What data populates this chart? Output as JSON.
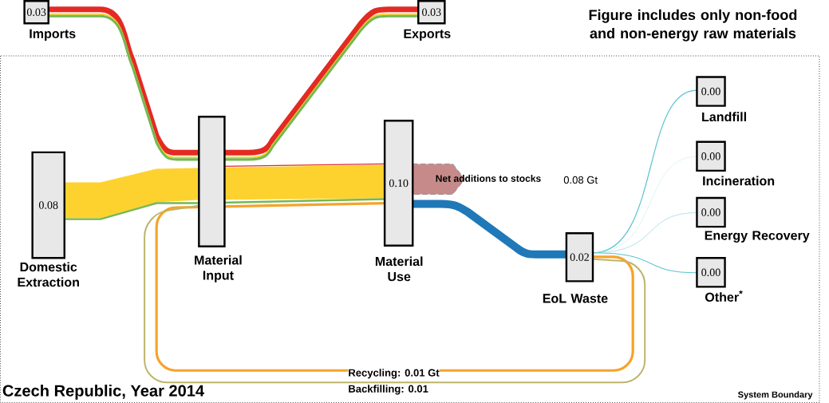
{
  "chart_data": {
    "type": "other",
    "title": "Czech Republic, Year 2014",
    "categories": [
      "Imports",
      "Exports",
      "Domestic Extraction",
      "Material Input",
      "Material Use",
      "EoL Waste",
      "Landfill",
      "Incineration",
      "Energy Recovery",
      "Other$^{*}$"
    ],
    "values": [
      0.03,
      0.03,
      0.08,
      null,
      0.1,
      0.02,
      0.0,
      0.0,
      0.0,
      0.0
    ],
    "value_labels": [
      "0.03",
      "0.03",
      "0.08",
      null,
      "0.10",
      "0.02",
      "0.00",
      "0.00",
      "0.00",
      "0.00"
    ],
    "annotations": [
      "Figure includes only non-food and non-energy raw materials",
      "Net additions to stocks",
      "0.08 Gt",
      "Recycling: 0.01 Gt",
      "Backfilling: 0.01",
      "System Boundary"
    ]
  }
}
